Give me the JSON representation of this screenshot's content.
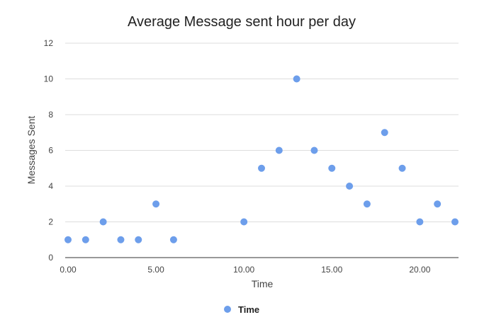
{
  "chart_data": {
    "type": "scatter",
    "title": "Average Message sent hour per day",
    "xlabel": "Time",
    "ylabel": "Messages Sent",
    "xlim": [
      0,
      22
    ],
    "ylim": [
      0,
      12
    ],
    "x_ticks": [
      0,
      5,
      10,
      15,
      20
    ],
    "x_tick_labels": [
      "0.00",
      "5.00",
      "10.00",
      "15.00",
      "20.00"
    ],
    "y_ticks": [
      0,
      2,
      4,
      6,
      8,
      10,
      12
    ],
    "y_tick_labels": [
      "0",
      "2",
      "4",
      "6",
      "8",
      "10",
      "12"
    ],
    "grid": true,
    "legend_position": "bottom",
    "series": [
      {
        "name": "Time",
        "color": "#6d9eeb",
        "x": [
          0,
          1,
          2,
          3,
          4,
          5,
          6,
          10,
          11,
          12,
          13,
          14,
          15,
          16,
          17,
          18,
          19,
          20,
          21,
          22
        ],
        "y": [
          1,
          1,
          2,
          1,
          1,
          3,
          1,
          2,
          5,
          6,
          10,
          6,
          5,
          4,
          3,
          7,
          5,
          2,
          3,
          2
        ]
      }
    ]
  }
}
